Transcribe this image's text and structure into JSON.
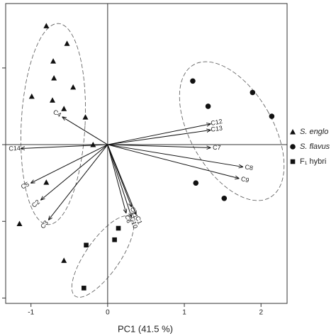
{
  "chart_data": {
    "type": "biplot",
    "xlabel": "PC1 (41.5 %)",
    "xlim": [
      -1.33,
      2.34
    ],
    "xticks": [
      -1,
      0,
      1,
      2
    ],
    "ylim": [
      -2.07,
      1.84
    ],
    "yticks": [
      -2,
      -1,
      0,
      1
    ],
    "color": "#111111",
    "series": [
      {
        "name": "S. englo",
        "marker": "triangle",
        "x": [
          -0.8,
          -0.53,
          -0.71,
          -0.7,
          -0.45,
          -0.99,
          -0.72,
          -0.57,
          -0.29,
          -0.19,
          -0.8,
          -1.15,
          -0.57
        ],
        "y": [
          1.55,
          1.32,
          1.09,
          0.87,
          0.75,
          0.63,
          0.58,
          0.47,
          0.36,
          0.0,
          -0.49,
          -1.03,
          -1.51
        ]
      },
      {
        "name": "S. flavus",
        "marker": "circle",
        "x": [
          1.11,
          1.31,
          1.89,
          2.14,
          1.15,
          1.52
        ],
        "y": [
          0.83,
          0.5,
          0.68,
          0.37,
          -0.5,
          -0.7
        ]
      },
      {
        "name": "F₁ hybri",
        "marker": "square",
        "x": [
          0.14,
          0.09,
          -0.28,
          -0.31
        ],
        "y": [
          -1.09,
          -1.24,
          -1.31,
          -1.87
        ]
      }
    ],
    "loadings": {
      "labels": [
        "C4",
        "C12",
        "C13",
        "C14",
        "C7",
        "C8",
        "C9",
        "C5",
        "C2",
        "C3",
        "C11",
        "C1",
        "C10",
        "C6"
      ],
      "x": [
        -0.59,
        1.34,
        1.34,
        -1.13,
        1.34,
        1.76,
        1.71,
        -1.0,
        -0.87,
        -0.77,
        0.31,
        0.37,
        0.31,
        0.24
      ],
      "y": [
        0.36,
        0.27,
        0.19,
        -0.05,
        -0.04,
        -0.29,
        -0.44,
        -0.5,
        -0.72,
        -0.98,
        -0.81,
        -0.91,
        -0.94,
        -0.89
      ]
    }
  }
}
